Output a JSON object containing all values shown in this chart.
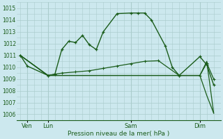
{
  "title": "",
  "xlabel": "Pression niveau de la mer( hPa )",
  "bg_color": "#cce8ee",
  "grid_color": "#aacccc",
  "line_color": "#1a5c1a",
  "ylim": [
    1005.5,
    1015.5
  ],
  "yticks": [
    1006,
    1007,
    1008,
    1009,
    1010,
    1011,
    1012,
    1013,
    1014,
    1015
  ],
  "day_labels": [
    "Ven",
    "Lun",
    "Sam",
    "Dim"
  ],
  "series1_x": [
    0,
    1,
    4,
    5,
    6,
    7,
    8,
    9,
    10,
    11,
    12,
    14,
    16,
    17,
    18,
    19,
    21,
    22,
    23,
    26,
    27,
    28
  ],
  "series1_y": [
    1011.0,
    1010.1,
    1009.3,
    1009.4,
    1011.5,
    1012.2,
    1012.1,
    1012.7,
    1011.9,
    1011.5,
    1013.0,
    1014.55,
    1014.6,
    1014.6,
    1014.6,
    1014.0,
    1011.8,
    1010.0,
    1009.3,
    1010.9,
    1010.2,
    1008.5
  ],
  "series2_x": [
    0,
    4,
    6,
    8,
    10,
    12,
    14,
    16,
    18,
    20,
    23,
    26,
    27,
    28
  ],
  "series2_y": [
    1011.0,
    1009.3,
    1009.5,
    1009.6,
    1009.7,
    1009.9,
    1010.1,
    1010.3,
    1010.5,
    1010.55,
    1009.3,
    1009.3,
    1010.35,
    1009.0
  ],
  "series3_x": [
    0,
    4,
    16,
    23,
    26,
    27,
    28
  ],
  "series3_y": [
    1011.0,
    1009.3,
    1009.3,
    1009.3,
    1009.3,
    1010.5,
    1006.1
  ],
  "series4_x": [
    0,
    4,
    16,
    23,
    26,
    27,
    28
  ],
  "series4_y": [
    1011.0,
    1009.3,
    1009.3,
    1009.3,
    1009.3,
    1007.6,
    1006.1
  ],
  "xmin": -0.5,
  "xmax": 29.0,
  "ven_x": 1,
  "lun_x": 4,
  "sam_x": 16,
  "dim_x": 26
}
